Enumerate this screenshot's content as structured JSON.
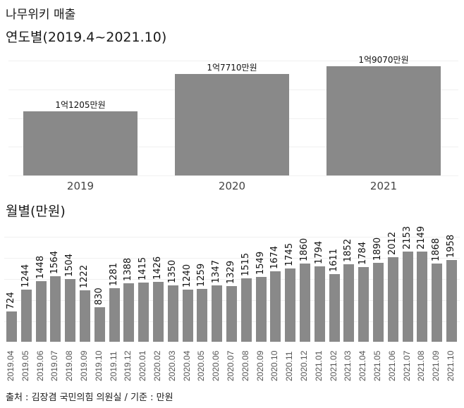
{
  "header": {
    "title": "나무위키 매출",
    "yearly_title": "연도별(2019.4~2021.10)",
    "monthly_title": "월별(만원)"
  },
  "footer": {
    "source": "출처 : 김장겸 국민의힘 의원실 / 기준 : 만원"
  },
  "colors": {
    "bar": "#898989",
    "grid": "#f0f0f0",
    "text": "#1a1a1a"
  },
  "chart_data": [
    {
      "type": "bar",
      "title": "연도별(2019.4~2021.10)",
      "xlabel": "",
      "ylabel": "",
      "categories": [
        "2019",
        "2020",
        "2021"
      ],
      "values": [
        11205,
        17710,
        19070
      ],
      "value_labels": [
        "1억1205만원",
        "1억7710만원",
        "1억9070만원"
      ],
      "unit": "만원",
      "grid": true,
      "legend": "none"
    },
    {
      "type": "bar",
      "title": "월별(만원)",
      "xlabel": "",
      "ylabel": "",
      "categories": [
        "2019.04",
        "2019.05",
        "2019.06",
        "2019.07",
        "2019.08",
        "2019.09",
        "2019.10",
        "2019.11",
        "2019.12",
        "2020.01",
        "2020.02",
        "2020.03",
        "2020.04",
        "2020.05",
        "2020.06",
        "2020.07",
        "2020.08",
        "2020.09",
        "2020.10",
        "2020.11",
        "2020.12",
        "2021.01",
        "2021.02",
        "2021.03",
        "2021.04",
        "2021.05",
        "2021.06",
        "2021.07",
        "2021.08",
        "2021.09",
        "2021.10"
      ],
      "values": [
        724,
        1244,
        1448,
        1564,
        1504,
        1222,
        830,
        1281,
        1388,
        1415,
        1426,
        1350,
        1240,
        1259,
        1347,
        1329,
        1515,
        1549,
        1674,
        1745,
        1860,
        1794,
        1611,
        1852,
        1784,
        1890,
        2012,
        2153,
        2149,
        1868,
        1958
      ],
      "unit": "만원",
      "grid": true,
      "legend": "none"
    }
  ]
}
